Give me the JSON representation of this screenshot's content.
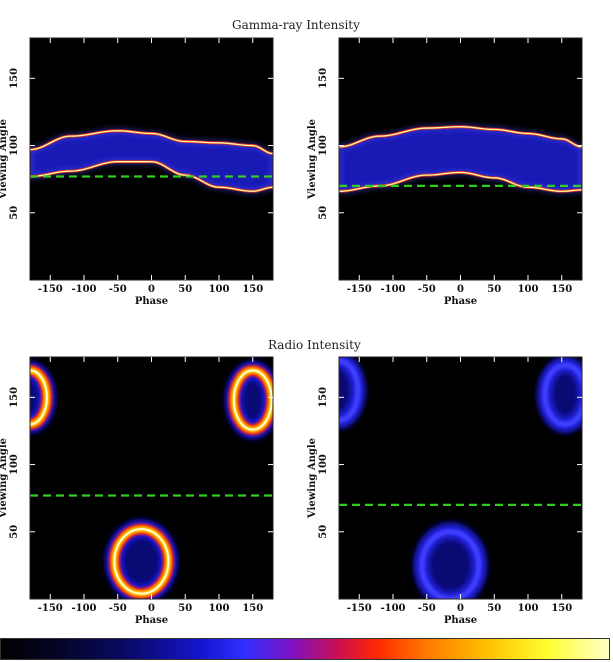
{
  "titles": {
    "top": "Gamma-ray   Intensity",
    "bottom": "Radio   Intensity"
  },
  "colors": {
    "guide_line": "#33cc22",
    "background": "#000000"
  },
  "chart_data": [
    {
      "type": "heatmap",
      "id": "gamma-left",
      "xlabel": "Phase",
      "ylabel": "Viewing Angle",
      "xlim": [
        -180,
        180
      ],
      "ylim": [
        0,
        180
      ],
      "xticks": [
        "-150",
        "-100",
        "-50",
        "0",
        "50",
        "100",
        "150"
      ],
      "yticks": [
        "50",
        "100",
        "150"
      ],
      "guide_angle": 77,
      "band": {
        "phases": [
          -180,
          -120,
          -50,
          0,
          50,
          100,
          150,
          180
        ],
        "upper": [
          97,
          107,
          111,
          109,
          103,
          102,
          100,
          94
        ],
        "lower": [
          77,
          81,
          88,
          88,
          78,
          69,
          66,
          69
        ]
      },
      "blobs": []
    },
    {
      "type": "heatmap",
      "id": "gamma-right",
      "xlabel": "Phase",
      "ylabel": "Viewing Angle",
      "xlim": [
        -180,
        180
      ],
      "ylim": [
        0,
        180
      ],
      "xticks": [
        "-150",
        "-100",
        "-50",
        "0",
        "50",
        "100",
        "150"
      ],
      "yticks": [
        "50",
        "100",
        "150"
      ],
      "guide_angle": 70,
      "band": {
        "phases": [
          -180,
          -120,
          -50,
          0,
          50,
          100,
          150,
          180
        ],
        "upper": [
          99,
          107,
          113,
          114,
          112,
          109,
          105,
          99
        ],
        "lower": [
          66,
          70,
          78,
          80,
          76,
          69,
          66,
          67
        ]
      },
      "blobs": []
    },
    {
      "type": "heatmap",
      "id": "radio-left",
      "xlabel": "Phase",
      "ylabel": "Viewing Angle",
      "xlim": [
        -180,
        180
      ],
      "ylim": [
        0,
        180
      ],
      "xticks": [
        "-150",
        "-100",
        "-50",
        "0",
        "50",
        "100",
        "150"
      ],
      "yticks": [
        "50",
        "100",
        "150"
      ],
      "guide_angle": 77,
      "band": null,
      "blobs": [
        {
          "cx": -180,
          "cy": 150,
          "rx": 25,
          "ry": 20,
          "intensity": "high"
        },
        {
          "cx": 150,
          "cy": 148,
          "rx": 28,
          "ry": 22,
          "intensity": "high"
        },
        {
          "cx": -15,
          "cy": 28,
          "rx": 40,
          "ry": 24,
          "intensity": "high"
        }
      ]
    },
    {
      "type": "heatmap",
      "id": "radio-right",
      "xlabel": "Phase",
      "ylabel": "Viewing Angle",
      "xlim": [
        -180,
        180
      ],
      "ylim": [
        0,
        180
      ],
      "xticks": [
        "-150",
        "-100",
        "-50",
        "0",
        "50",
        "100",
        "150"
      ],
      "yticks": [
        "50",
        "100",
        "150"
      ],
      "guide_angle": 70,
      "band": null,
      "blobs": [
        {
          "cx": -180,
          "cy": 155,
          "rx": 28,
          "ry": 22,
          "intensity": "low"
        },
        {
          "cx": 155,
          "cy": 152,
          "rx": 30,
          "ry": 22,
          "intensity": "low"
        },
        {
          "cx": -15,
          "cy": 25,
          "rx": 42,
          "ry": 25,
          "intensity": "low"
        }
      ]
    }
  ]
}
